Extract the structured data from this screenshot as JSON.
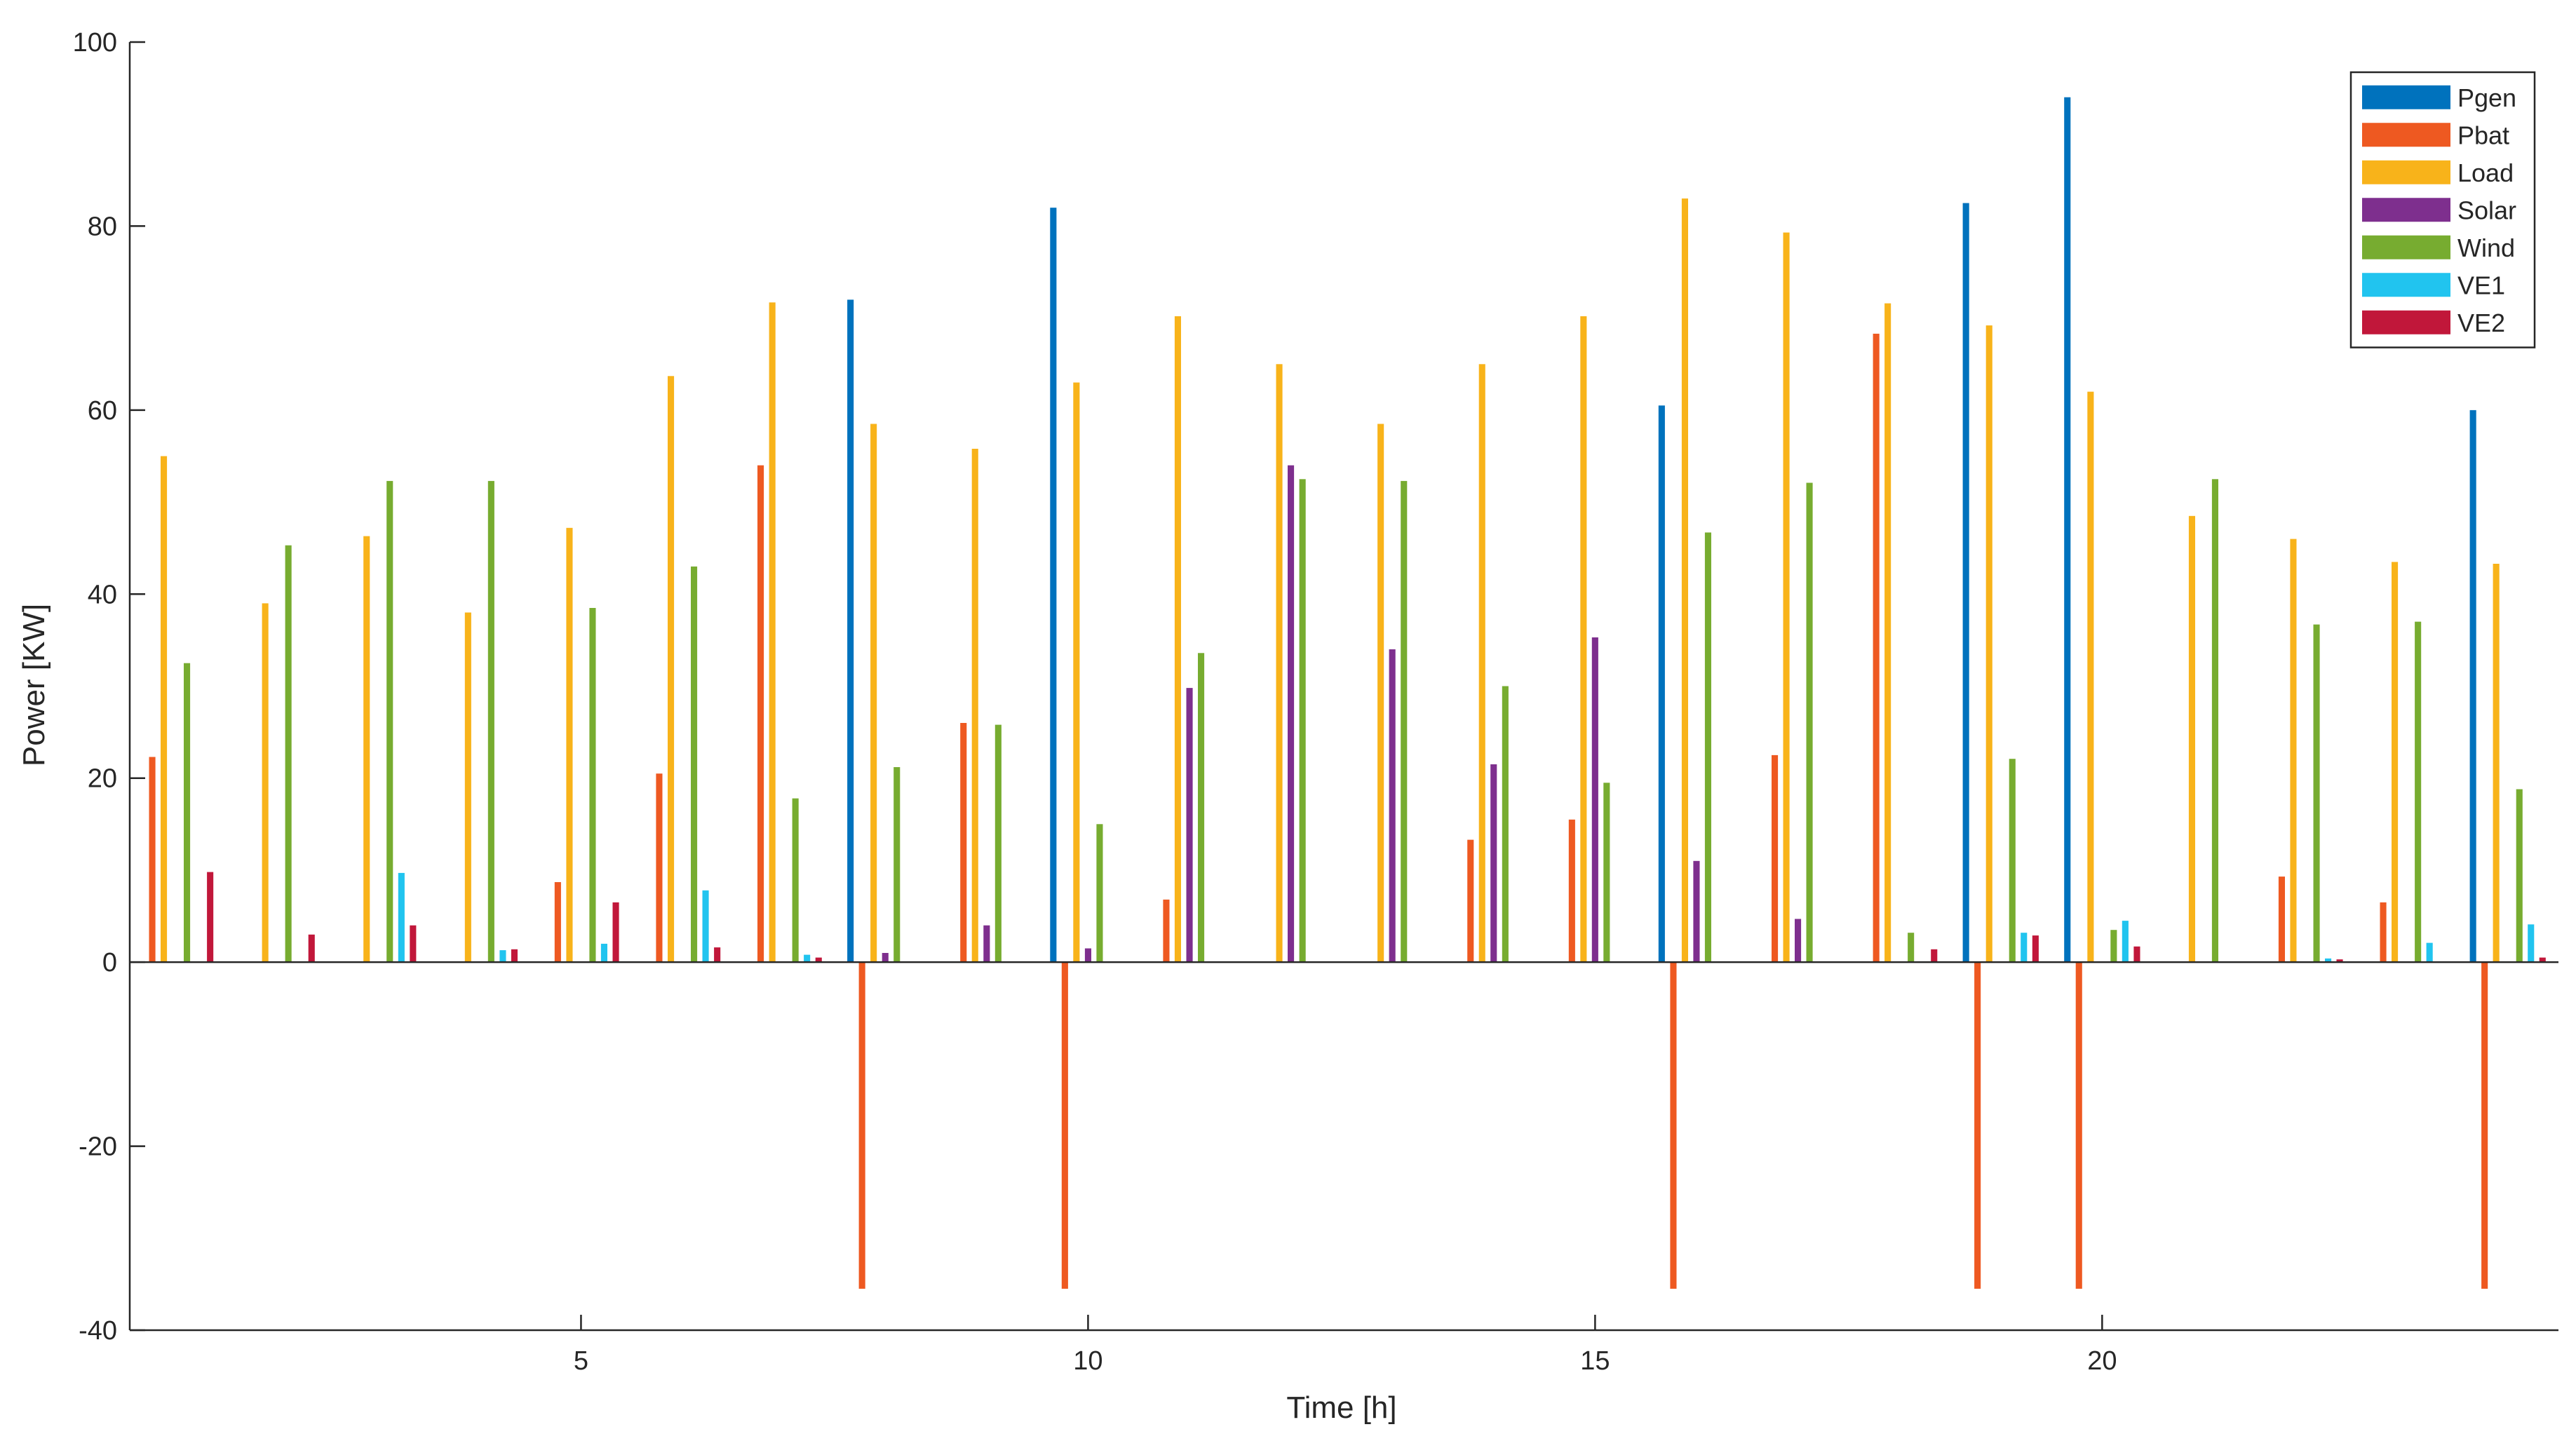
{
  "chart_data": {
    "type": "bar",
    "xlabel": "Time [h]",
    "ylabel": "Power [KW]",
    "x": [
      1,
      2,
      3,
      4,
      5,
      6,
      7,
      8,
      9,
      10,
      11,
      12,
      13,
      14,
      15,
      16,
      17,
      18,
      19,
      20,
      21,
      22,
      23,
      24
    ],
    "xlim": [
      0.55,
      24.5
    ],
    "ylim": [
      -40,
      100
    ],
    "x_ticks": [
      5,
      10,
      15,
      20
    ],
    "x_tick_labels": [
      "5",
      "10",
      "15",
      "20"
    ],
    "y_ticks": [
      -40,
      -20,
      0,
      20,
      40,
      60,
      80,
      100
    ],
    "y_tick_labels": [
      "-40",
      "-20",
      "0",
      "20",
      "40",
      "60",
      "80",
      "100"
    ],
    "grid": false,
    "legend_position": "top-right",
    "series": [
      {
        "name": "Pgen",
        "color": "#0072BD",
        "values": [
          0,
          0,
          0,
          0,
          0,
          0,
          0,
          72,
          0,
          82,
          0,
          0,
          0,
          0,
          0,
          60.5,
          0,
          0,
          82.5,
          94,
          0,
          0,
          0,
          60
        ]
      },
      {
        "name": "Pbat",
        "color": "#EE5921",
        "values": [
          22.3,
          0,
          0,
          0,
          8.7,
          20.5,
          54,
          -35.5,
          26,
          -35.5,
          6.8,
          0,
          0,
          13.3,
          15.5,
          -35.5,
          22.5,
          68.3,
          -35.5,
          -35.5,
          0,
          9.3,
          6.5,
          -35.5
        ]
      },
      {
        "name": "Load",
        "color": "#F8B31A",
        "values": [
          55,
          39,
          46.3,
          38,
          47.2,
          63.7,
          71.7,
          58.5,
          55.8,
          63,
          70.2,
          65,
          58.5,
          65,
          70.2,
          83,
          79.3,
          71.6,
          69.2,
          62,
          48.5,
          46,
          43.5,
          43.3
        ]
      },
      {
        "name": "Solar",
        "color": "#7E2F8E",
        "values": [
          0,
          0,
          0,
          0,
          0,
          0,
          0,
          1,
          4,
          1.5,
          29.8,
          54,
          34,
          21.5,
          35.3,
          11,
          4.7,
          0,
          0,
          0,
          0,
          0,
          0,
          0
        ]
      },
      {
        "name": "Wind",
        "color": "#77AC30",
        "values": [
          32.5,
          45.3,
          52.3,
          52.3,
          38.5,
          43,
          17.8,
          21.2,
          25.8,
          15,
          33.6,
          52.5,
          52.3,
          30,
          19.5,
          46.7,
          52.1,
          3.2,
          22.1,
          3.5,
          52.5,
          36.7,
          37,
          18.8
        ]
      },
      {
        "name": "VE1",
        "color": "#21C4EF",
        "values": [
          0,
          0,
          9.7,
          1.3,
          2,
          7.8,
          0.8,
          0,
          0,
          0,
          0,
          0,
          0,
          0,
          0,
          0,
          0,
          0,
          3.2,
          4.5,
          0,
          0.4,
          2.1,
          4.1
        ]
      },
      {
        "name": "VE2",
        "color": "#C1173A",
        "values": [
          9.8,
          3,
          4,
          1.4,
          6.5,
          1.6,
          0.5,
          0,
          0,
          0,
          0,
          0,
          0,
          0,
          0,
          0,
          0,
          1.4,
          2.9,
          1.7,
          0,
          0.3,
          0,
          0.5
        ]
      }
    ]
  }
}
